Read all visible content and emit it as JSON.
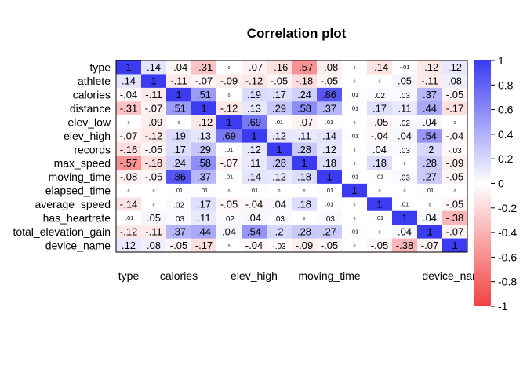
{
  "chart_data": {
    "type": "heatmap",
    "title": "Correlation plot",
    "variables": [
      "type",
      "athlete",
      "calories",
      "distance",
      "elev_low",
      "elev_high",
      "records",
      "max_speed",
      "moving_time",
      "elapsed_time",
      "average_speed",
      "has_heartrate",
      "total_elevation_gain",
      "device_name"
    ],
    "x_tick_labels": [
      "type",
      "",
      "calories",
      "",
      "elev_high",
      "",
      "moving_time",
      "",
      "",
      "",
      "device_name"
    ],
    "x_tick_text": [
      "type",
      "calories",
      "elev_high",
      "moving_time",
      "device_name"
    ],
    "matrix": [
      [
        1,
        0.14,
        -0.04,
        -0.31,
        0,
        -0.07,
        -0.16,
        -0.57,
        -0.08,
        0,
        -0.14,
        -0.01,
        -0.12,
        0.12
      ],
      [
        0.14,
        1,
        -0.11,
        -0.07,
        -0.09,
        -0.12,
        -0.05,
        -0.18,
        -0.05,
        0,
        0,
        0.05,
        -0.11,
        0.08
      ],
      [
        -0.04,
        -0.11,
        1,
        0.51,
        0,
        0.19,
        0.17,
        0.24,
        0.86,
        0.01,
        0.02,
        0.03,
        0.37,
        -0.05
      ],
      [
        -0.31,
        -0.07,
        0.51,
        1,
        -0.12,
        0.13,
        0.29,
        0.58,
        0.37,
        0.01,
        0.17,
        0.11,
        0.44,
        -0.17
      ],
      [
        0,
        -0.09,
        0,
        -0.12,
        1,
        0.69,
        0.01,
        -0.07,
        0.01,
        0,
        -0.05,
        0.02,
        0.04,
        0
      ],
      [
        -0.07,
        -0.12,
        0.19,
        0.13,
        0.69,
        1,
        0.12,
        0.11,
        0.14,
        0.01,
        -0.04,
        0.04,
        0.54,
        -0.04
      ],
      [
        -0.16,
        -0.05,
        0.17,
        0.29,
        0.01,
        0.12,
        1,
        0.28,
        0.12,
        0,
        0.04,
        0.03,
        0.2,
        -0.03
      ],
      [
        -0.57,
        -0.18,
        0.24,
        0.58,
        -0.07,
        0.11,
        0.28,
        1,
        0.18,
        0,
        0.18,
        0,
        0.28,
        -0.09
      ],
      [
        -0.08,
        -0.05,
        0.86,
        0.37,
        0.01,
        0.14,
        0.12,
        0.18,
        1,
        0.01,
        0.01,
        0.03,
        0.27,
        -0.05
      ],
      [
        0,
        0,
        0.01,
        0.01,
        0,
        0.01,
        0,
        0,
        0.01,
        1,
        0,
        0,
        0.01,
        0
      ],
      [
        -0.14,
        0,
        0.02,
        0.17,
        -0.05,
        -0.04,
        0.04,
        0.18,
        0.01,
        0,
        1,
        0.01,
        0,
        -0.05
      ],
      [
        -0.01,
        0.05,
        0.03,
        0.11,
        0.02,
        0.04,
        0.03,
        0,
        0.03,
        0,
        0.01,
        1,
        0.04,
        -0.38
      ],
      [
        -0.12,
        -0.11,
        0.37,
        0.44,
        0.04,
        0.54,
        0.2,
        0.28,
        0.27,
        0.01,
        0,
        0.04,
        1,
        -0.07
      ],
      [
        0.12,
        0.08,
        -0.05,
        -0.17,
        0,
        -0.04,
        -0.03,
        -0.09,
        -0.05,
        0,
        -0.05,
        -0.38,
        -0.07,
        1
      ]
    ],
    "legend_ticks": [
      "1",
      "0.8",
      "0.6",
      "0.4",
      "0.2",
      "0",
      "-0.2",
      "-0.4",
      "-0.6",
      "-0.8",
      "-1"
    ],
    "legend_range": [
      -1,
      1
    ],
    "colors": {
      "positive": "#3b3bf2",
      "negative": "#f24141",
      "neutral": "#ffffff"
    }
  }
}
